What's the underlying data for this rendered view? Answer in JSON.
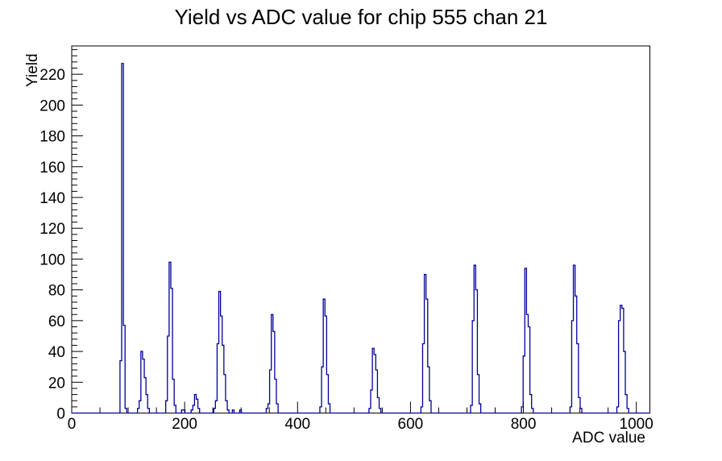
{
  "title": "Yield vs ADC value for chip 555 chan 21",
  "chart_data": {
    "type": "bar",
    "subtype": "step-histogram",
    "title": "Yield vs ADC value for chip 555 chan 21",
    "xlabel": "ADC value",
    "ylabel": "Yield",
    "xlim": [
      0,
      1024
    ],
    "ylim": [
      0,
      238.4
    ],
    "x_ticks": [
      0,
      200,
      400,
      600,
      800,
      1000
    ],
    "x_minor_step": 50,
    "y_ticks": [
      0,
      20,
      40,
      60,
      80,
      100,
      120,
      140,
      160,
      180,
      200,
      220
    ],
    "y_minor_step": 4,
    "grid": false,
    "legend": false,
    "bin_width": 3,
    "line_color": "#000099",
    "frame_color": "#000000",
    "background_color": "#ffffff",
    "bins": [
      [
        87,
        34
      ],
      [
        90,
        227
      ],
      [
        93,
        57
      ],
      [
        96,
        3
      ],
      [
        118,
        3
      ],
      [
        121,
        8
      ],
      [
        124,
        40
      ],
      [
        127,
        35
      ],
      [
        130,
        23
      ],
      [
        133,
        12
      ],
      [
        136,
        3
      ],
      [
        168,
        8
      ],
      [
        171,
        50
      ],
      [
        174,
        98
      ],
      [
        177,
        81
      ],
      [
        180,
        22
      ],
      [
        183,
        5
      ],
      [
        196,
        2
      ],
      [
        199,
        2
      ],
      [
        213,
        2
      ],
      [
        216,
        5
      ],
      [
        219,
        12
      ],
      [
        222,
        9
      ],
      [
        225,
        3
      ],
      [
        253,
        3
      ],
      [
        256,
        8
      ],
      [
        259,
        45
      ],
      [
        262,
        79
      ],
      [
        265,
        63
      ],
      [
        268,
        44
      ],
      [
        271,
        25
      ],
      [
        274,
        8
      ],
      [
        277,
        2
      ],
      [
        286,
        2
      ],
      [
        299,
        2
      ],
      [
        346,
        3
      ],
      [
        349,
        6
      ],
      [
        352,
        28
      ],
      [
        355,
        64
      ],
      [
        358,
        53
      ],
      [
        361,
        22
      ],
      [
        364,
        6
      ],
      [
        441,
        4
      ],
      [
        444,
        30
      ],
      [
        447,
        74
      ],
      [
        450,
        63
      ],
      [
        453,
        25
      ],
      [
        456,
        6
      ],
      [
        528,
        3
      ],
      [
        531,
        15
      ],
      [
        534,
        42
      ],
      [
        537,
        38
      ],
      [
        540,
        28
      ],
      [
        543,
        10
      ],
      [
        546,
        3
      ],
      [
        620,
        4
      ],
      [
        623,
        45
      ],
      [
        626,
        90
      ],
      [
        629,
        74
      ],
      [
        632,
        30
      ],
      [
        635,
        8
      ],
      [
        708,
        5
      ],
      [
        711,
        60
      ],
      [
        714,
        96
      ],
      [
        717,
        80
      ],
      [
        720,
        25
      ],
      [
        723,
        6
      ],
      [
        798,
        4
      ],
      [
        801,
        37
      ],
      [
        804,
        94
      ],
      [
        807,
        64
      ],
      [
        810,
        56
      ],
      [
        813,
        12
      ],
      [
        816,
        3
      ],
      [
        884,
        4
      ],
      [
        887,
        60
      ],
      [
        890,
        96
      ],
      [
        893,
        76
      ],
      [
        896,
        45
      ],
      [
        899,
        10
      ],
      [
        902,
        3
      ],
      [
        967,
        4
      ],
      [
        970,
        60
      ],
      [
        973,
        70
      ],
      [
        976,
        68
      ],
      [
        979,
        40
      ],
      [
        982,
        12
      ],
      [
        985,
        3
      ]
    ]
  }
}
